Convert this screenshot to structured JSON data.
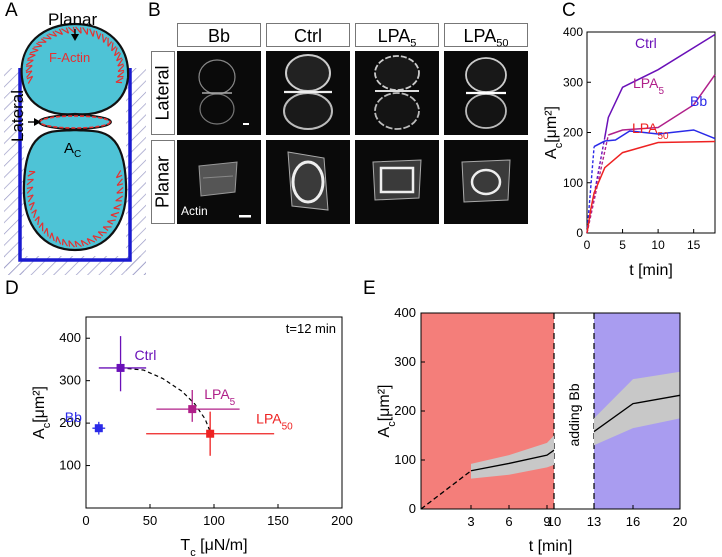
{
  "panels": {
    "A": {
      "letter": "A",
      "planar_label": "Planar",
      "lateral_label": "Lateral",
      "factin_label": "F-Actin",
      "area_label": "A",
      "area_sub": "C"
    },
    "B": {
      "letter": "B",
      "columns": [
        {
          "label": "Bb",
          "sub": ""
        },
        {
          "label": "Ctrl",
          "sub": ""
        },
        {
          "label": "LPA",
          "sub": "5"
        },
        {
          "label": "LPA",
          "sub": "50"
        }
      ],
      "rows": [
        "Lateral",
        "Planar"
      ],
      "stain_label": "Actin"
    },
    "C": {
      "letter": "C"
    },
    "D": {
      "letter": "D"
    },
    "E": {
      "letter": "E"
    }
  },
  "colors": {
    "ctrl": "#6a10b8",
    "lpa5": "#b0208a",
    "bb": "#2a2ae8",
    "lpa50": "#ee2222",
    "cell": "#4ec3d6",
    "actin": "#e63030",
    "frame": "#1a1ad0",
    "shade_red": "#f47e7a",
    "shade_blue": "#a99cf0",
    "band": "#c8c8c8"
  },
  "chart_data": [
    {
      "panel": "C",
      "type": "line",
      "xlabel": "t [min]",
      "ylabel_main": "A",
      "ylabel_sub": "c",
      "ylabel_unit": "[μm²]",
      "xlim": [
        0,
        18
      ],
      "ylim": [
        0,
        400
      ],
      "xticks": [
        0,
        5,
        10,
        15
      ],
      "yticks": [
        0,
        100,
        200,
        300,
        400
      ],
      "series": [
        {
          "name": "Ctrl",
          "color_key": "ctrl",
          "dashed": {
            "x": [
              0,
              2.5
            ],
            "y": [
              0,
              190
            ]
          },
          "x": [
            2.5,
            3,
            5,
            10,
            18
          ],
          "y": [
            190,
            230,
            290,
            325,
            395
          ]
        },
        {
          "name": "LPA",
          "name_sub": "5",
          "color_key": "lpa5",
          "dashed": {
            "x": [
              0,
              3
            ],
            "y": [
              0,
              195
            ]
          },
          "x": [
            3,
            5,
            10,
            15,
            18
          ],
          "y": [
            195,
            205,
            210,
            255,
            315
          ]
        },
        {
          "name": "Bb",
          "color_key": "bb",
          "dashed": {
            "x": [
              0,
              1
            ],
            "y": [
              0,
              172
            ]
          },
          "x": [
            1,
            2.5,
            4,
            6,
            10,
            15,
            18
          ],
          "y": [
            172,
            183,
            185,
            203,
            197,
            205,
            188
          ]
        },
        {
          "name": "LPA",
          "name_sub": "50",
          "color_key": "lpa50",
          "dashed": null,
          "x": [
            0,
            0.5,
            1,
            2.5,
            5,
            10,
            18
          ],
          "y": [
            0,
            45,
            80,
            130,
            160,
            180,
            182
          ]
        }
      ]
    },
    {
      "panel": "D",
      "type": "scatter",
      "xlabel_main": "T",
      "xlabel_sub": "c",
      "xlabel_unit": "[μN/m]",
      "ylabel_main": "A",
      "ylabel_sub": "c",
      "ylabel_unit": "[μm²]",
      "annotation": "t=12 min",
      "xlim": [
        0,
        200
      ],
      "ylim": [
        0,
        450
      ],
      "xticks": [
        0,
        50,
        100,
        150,
        200
      ],
      "yticks": [
        100,
        200,
        300,
        400
      ],
      "points": [
        {
          "name": "Bb",
          "name_sub": "",
          "color_key": "bb",
          "x": 10,
          "y": 188,
          "xerr": [
            5,
            5
          ],
          "yerr": [
            15,
            15
          ]
        },
        {
          "name": "Ctrl",
          "name_sub": "",
          "color_key": "ctrl",
          "x": 27,
          "y": 330,
          "xerr": [
            17,
            20
          ],
          "yerr": [
            55,
            75
          ]
        },
        {
          "name": "LPA",
          "name_sub": "5",
          "color_key": "lpa5",
          "x": 83,
          "y": 233,
          "xerr": [
            28,
            37
          ],
          "yerr": [
            30,
            45
          ]
        },
        {
          "name": "LPA",
          "name_sub": "50",
          "color_key": "lpa50",
          "x": 97,
          "y": 175,
          "xerr": [
            50,
            50
          ],
          "yerr": [
            52,
            52
          ]
        }
      ],
      "fit_curve": {
        "x": [
          27,
          45,
          60,
          75,
          85,
          93,
          97
        ],
        "y": [
          330,
          325,
          305,
          275,
          245,
          210,
          180
        ]
      }
    },
    {
      "panel": "E",
      "type": "area",
      "xlabel": "t [min]",
      "ylabel_main": "A",
      "ylabel_sub": "c",
      "ylabel_unit": "[μm²]",
      "annotation": "adding Bb",
      "xticks": [
        3,
        6,
        9,
        10,
        13,
        16,
        20
      ],
      "yticks": [
        0,
        100,
        200,
        300,
        400
      ],
      "ylim": [
        0,
        400
      ],
      "segments": [
        {
          "shade_key": "shade_red",
          "x_range": [
            0,
            10
          ],
          "dashed": {
            "x": [
              0,
              3
            ],
            "y": [
              0,
              78
            ]
          },
          "x": [
            3,
            6,
            9,
            10
          ],
          "y": [
            78,
            93,
            110,
            120
          ],
          "lower": [
            62,
            70,
            85,
            90
          ],
          "upper": [
            92,
            110,
            135,
            150
          ]
        },
        {
          "shade_key": "shade_blue",
          "x_range": [
            13,
            20
          ],
          "dashed": null,
          "x": [
            13,
            16,
            20
          ],
          "y": [
            158,
            215,
            232
          ],
          "lower": [
            130,
            165,
            185
          ],
          "upper": [
            185,
            265,
            280
          ]
        }
      ]
    }
  ]
}
